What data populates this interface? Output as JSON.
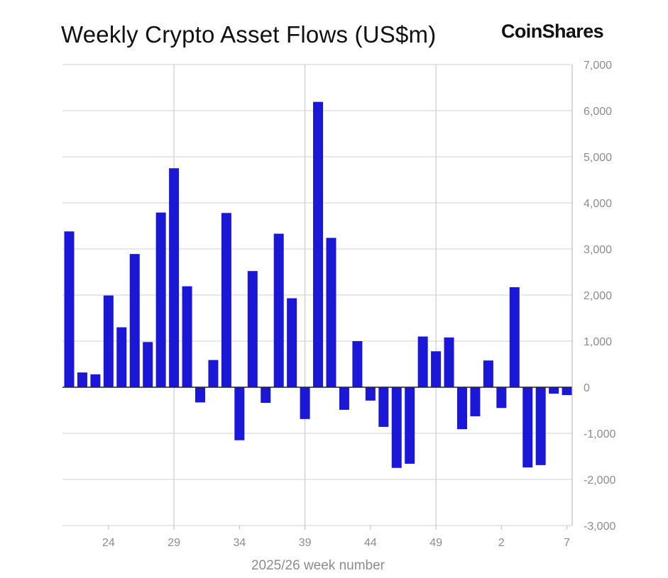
{
  "brand": "CoinShares",
  "chart_data": {
    "type": "bar",
    "title": "Weekly Crypto Asset Flows (US$m)",
    "xlabel": "2025/26 week number",
    "ylabel": "",
    "ylim": [
      -3000,
      7000
    ],
    "yticks": [
      7000,
      6000,
      5000,
      4000,
      3000,
      2000,
      1000,
      0,
      -1000,
      -2000,
      -3000
    ],
    "ytick_labels": [
      "7,000",
      "6,000",
      "5,000",
      "4,000",
      "3,000",
      "2,000",
      "1,000",
      "0",
      "-1,000",
      "-2,000",
      "-3,000"
    ],
    "xtick_labels": [
      "24",
      "29",
      "34",
      "39",
      "44",
      "49",
      "2",
      "7"
    ],
    "xtick_indices": [
      3,
      8,
      13,
      18,
      23,
      28,
      33,
      38
    ],
    "gridlines": [
      8,
      18,
      28
    ],
    "y_axis_position": "right",
    "grid": true,
    "bar_color": "#1a17d6",
    "categories": [
      "21",
      "22",
      "23",
      "24",
      "25",
      "26",
      "27",
      "28",
      "29",
      "30",
      "31",
      "32",
      "33",
      "34",
      "35",
      "36",
      "37",
      "38",
      "39",
      "40",
      "41",
      "42",
      "43",
      "44",
      "45",
      "46",
      "47",
      "48",
      "49",
      "50",
      "51",
      "52",
      "1",
      "2",
      "3",
      "4",
      "5",
      "6",
      "7"
    ],
    "values": [
      3380,
      320,
      280,
      1990,
      1300,
      2890,
      980,
      3790,
      4750,
      2190,
      -330,
      590,
      3780,
      -1150,
      2520,
      -340,
      3330,
      1930,
      -690,
      6190,
      3240,
      -490,
      1000,
      -290,
      -860,
      -1750,
      -1660,
      1100,
      780,
      1080,
      -910,
      -630,
      580,
      -450,
      2170,
      -1740,
      -1690,
      -140,
      -170
    ]
  }
}
